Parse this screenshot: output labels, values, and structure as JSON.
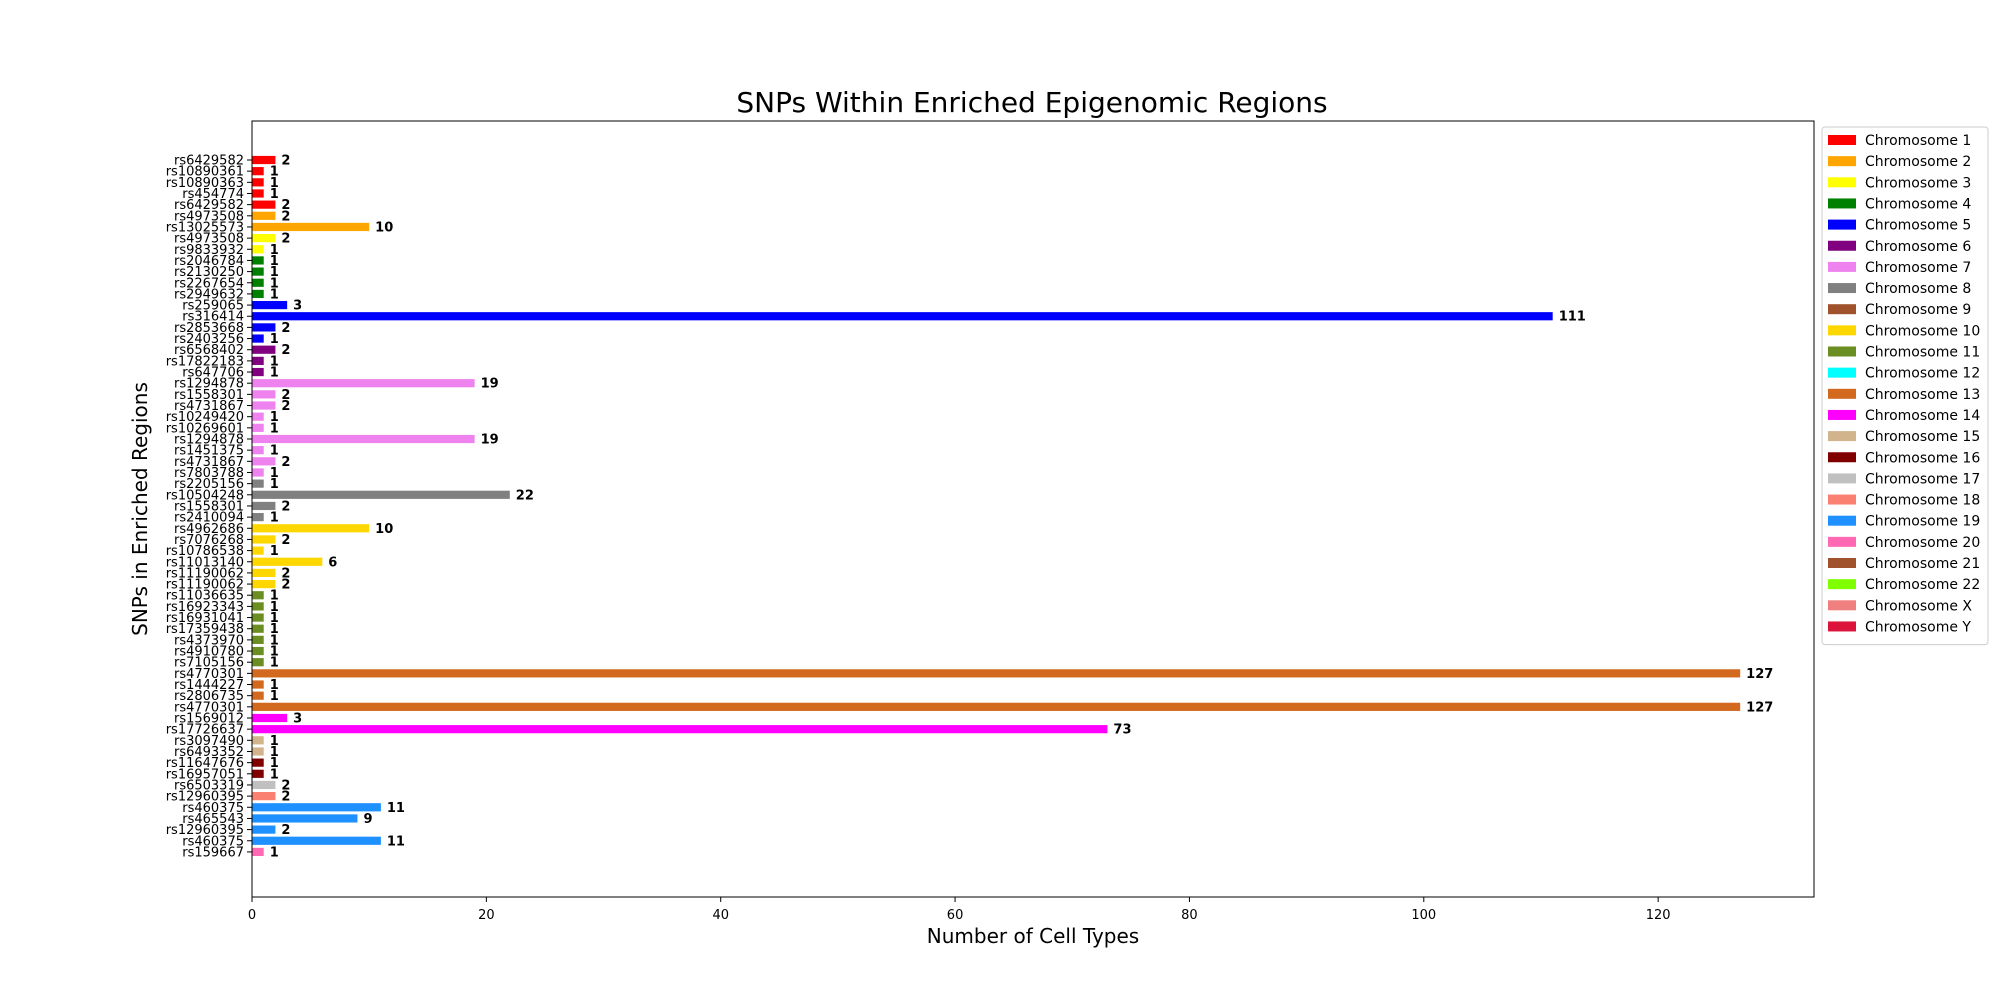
{
  "chart_data": {
    "type": "bar",
    "orientation": "horizontal",
    "title": "SNPs Within Enriched Epigenomic Regions",
    "xlabel": "Number of Cell Types",
    "ylabel": "SNPs in Enriched Regions",
    "xlim": [
      0,
      133.3
    ],
    "xticks": [
      0,
      20,
      40,
      60,
      80,
      100,
      120
    ],
    "grid": false,
    "legend_position": "right",
    "legend": [
      {
        "name": "Chromosome 1",
        "color": "#ff0000"
      },
      {
        "name": "Chromosome 2",
        "color": "#ffa500"
      },
      {
        "name": "Chromosome 3",
        "color": "#ffff00"
      },
      {
        "name": "Chromosome 4",
        "color": "#008000"
      },
      {
        "name": "Chromosome 5",
        "color": "#0000ff"
      },
      {
        "name": "Chromosome 6",
        "color": "#800080"
      },
      {
        "name": "Chromosome 7",
        "color": "#ee82ee"
      },
      {
        "name": "Chromosome 8",
        "color": "#808080"
      },
      {
        "name": "Chromosome 9",
        "color": "#a0522d"
      },
      {
        "name": "Chromosome 10",
        "color": "#ffd700"
      },
      {
        "name": "Chromosome 11",
        "color": "#6b8e23"
      },
      {
        "name": "Chromosome 12",
        "color": "#00ffff"
      },
      {
        "name": "Chromosome 13",
        "color": "#d2691e"
      },
      {
        "name": "Chromosome 14",
        "color": "#ff00ff"
      },
      {
        "name": "Chromosome 15",
        "color": "#d2b48c"
      },
      {
        "name": "Chromosome 16",
        "color": "#800000"
      },
      {
        "name": "Chromosome 17",
        "color": "#c0c0c0"
      },
      {
        "name": "Chromosome 18",
        "color": "#fa8072"
      },
      {
        "name": "Chromosome 19",
        "color": "#1e90ff"
      },
      {
        "name": "Chromosome 20",
        "color": "#ff69b4"
      },
      {
        "name": "Chromosome 21",
        "color": "#a0522d"
      },
      {
        "name": "Chromosome 22",
        "color": "#7fff00"
      },
      {
        "name": "Chromosome X",
        "color": "#f08080"
      },
      {
        "name": "Chromosome Y",
        "color": "#dc143c"
      }
    ],
    "bars": [
      {
        "snp": "rs6429582",
        "value": 2,
        "color": "#ff0000"
      },
      {
        "snp": "rs10890361",
        "value": 1,
        "color": "#ff0000"
      },
      {
        "snp": "rs10890363",
        "value": 1,
        "color": "#ff0000"
      },
      {
        "snp": "rs454774",
        "value": 1,
        "color": "#ff0000"
      },
      {
        "snp": "rs6429582",
        "value": 2,
        "color": "#ff0000"
      },
      {
        "snp": "rs4973508",
        "value": 2,
        "color": "#ffa500"
      },
      {
        "snp": "rs13025573",
        "value": 10,
        "color": "#ffa500"
      },
      {
        "snp": "rs4973508",
        "value": 2,
        "color": "#ffff00"
      },
      {
        "snp": "rs9833932",
        "value": 1,
        "color": "#ffff00"
      },
      {
        "snp": "rs2046784",
        "value": 1,
        "color": "#008000"
      },
      {
        "snp": "rs2130250",
        "value": 1,
        "color": "#008000"
      },
      {
        "snp": "rs2267654",
        "value": 1,
        "color": "#008000"
      },
      {
        "snp": "rs2949632",
        "value": 1,
        "color": "#008000"
      },
      {
        "snp": "rs259065",
        "value": 3,
        "color": "#0000ff"
      },
      {
        "snp": "rs316414",
        "value": 111,
        "color": "#0000ff"
      },
      {
        "snp": "rs2853668",
        "value": 2,
        "color": "#0000ff"
      },
      {
        "snp": "rs2403256",
        "value": 1,
        "color": "#0000ff"
      },
      {
        "snp": "rs6568402",
        "value": 2,
        "color": "#800080"
      },
      {
        "snp": "rs17822183",
        "value": 1,
        "color": "#800080"
      },
      {
        "snp": "rs647706",
        "value": 1,
        "color": "#800080"
      },
      {
        "snp": "rs1294878",
        "value": 19,
        "color": "#ee82ee"
      },
      {
        "snp": "rs1558301",
        "value": 2,
        "color": "#ee82ee"
      },
      {
        "snp": "rs4731867",
        "value": 2,
        "color": "#ee82ee"
      },
      {
        "snp": "rs10249420",
        "value": 1,
        "color": "#ee82ee"
      },
      {
        "snp": "rs10269601",
        "value": 1,
        "color": "#ee82ee"
      },
      {
        "snp": "rs1294878",
        "value": 19,
        "color": "#ee82ee"
      },
      {
        "snp": "rs1451375",
        "value": 1,
        "color": "#ee82ee"
      },
      {
        "snp": "rs4731867",
        "value": 2,
        "color": "#ee82ee"
      },
      {
        "snp": "rs7803788",
        "value": 1,
        "color": "#ee82ee"
      },
      {
        "snp": "rs2205156",
        "value": 1,
        "color": "#808080"
      },
      {
        "snp": "rs10504248",
        "value": 22,
        "color": "#808080"
      },
      {
        "snp": "rs1558301",
        "value": 2,
        "color": "#808080"
      },
      {
        "snp": "rs2410094",
        "value": 1,
        "color": "#808080"
      },
      {
        "snp": "rs4962686",
        "value": 10,
        "color": "#ffd700"
      },
      {
        "snp": "rs7076268",
        "value": 2,
        "color": "#ffd700"
      },
      {
        "snp": "rs10786538",
        "value": 1,
        "color": "#ffd700"
      },
      {
        "snp": "rs11013140",
        "value": 6,
        "color": "#ffd700"
      },
      {
        "snp": "rs11190062",
        "value": 2,
        "color": "#ffd700"
      },
      {
        "snp": "rs11190062",
        "value": 2,
        "color": "#ffd700"
      },
      {
        "snp": "rs11036635",
        "value": 1,
        "color": "#6b8e23"
      },
      {
        "snp": "rs16923343",
        "value": 1,
        "color": "#6b8e23"
      },
      {
        "snp": "rs16931041",
        "value": 1,
        "color": "#6b8e23"
      },
      {
        "snp": "rs17359438",
        "value": 1,
        "color": "#6b8e23"
      },
      {
        "snp": "rs4373970",
        "value": 1,
        "color": "#6b8e23"
      },
      {
        "snp": "rs4910780",
        "value": 1,
        "color": "#6b8e23"
      },
      {
        "snp": "rs7105156",
        "value": 1,
        "color": "#6b8e23"
      },
      {
        "snp": "rs4770301",
        "value": 127,
        "color": "#d2691e"
      },
      {
        "snp": "rs1444227",
        "value": 1,
        "color": "#d2691e"
      },
      {
        "snp": "rs2806735",
        "value": 1,
        "color": "#d2691e"
      },
      {
        "snp": "rs4770301",
        "value": 127,
        "color": "#d2691e"
      },
      {
        "snp": "rs1569012",
        "value": 3,
        "color": "#ff00ff"
      },
      {
        "snp": "rs17726637",
        "value": 73,
        "color": "#ff00ff"
      },
      {
        "snp": "rs3097490",
        "value": 1,
        "color": "#d2b48c"
      },
      {
        "snp": "rs6493352",
        "value": 1,
        "color": "#d2b48c"
      },
      {
        "snp": "rs11647676",
        "value": 1,
        "color": "#800000"
      },
      {
        "snp": "rs16957051",
        "value": 1,
        "color": "#800000"
      },
      {
        "snp": "rs6503319",
        "value": 2,
        "color": "#c0c0c0"
      },
      {
        "snp": "rs12960395",
        "value": 2,
        "color": "#fa8072"
      },
      {
        "snp": "rs460375",
        "value": 11,
        "color": "#1e90ff"
      },
      {
        "snp": "rs465543",
        "value": 9,
        "color": "#1e90ff"
      },
      {
        "snp": "rs12960395",
        "value": 2,
        "color": "#1e90ff"
      },
      {
        "snp": "rs460375",
        "value": 11,
        "color": "#1e90ff"
      },
      {
        "snp": "rs159667",
        "value": 1,
        "color": "#ff69b4"
      }
    ]
  }
}
